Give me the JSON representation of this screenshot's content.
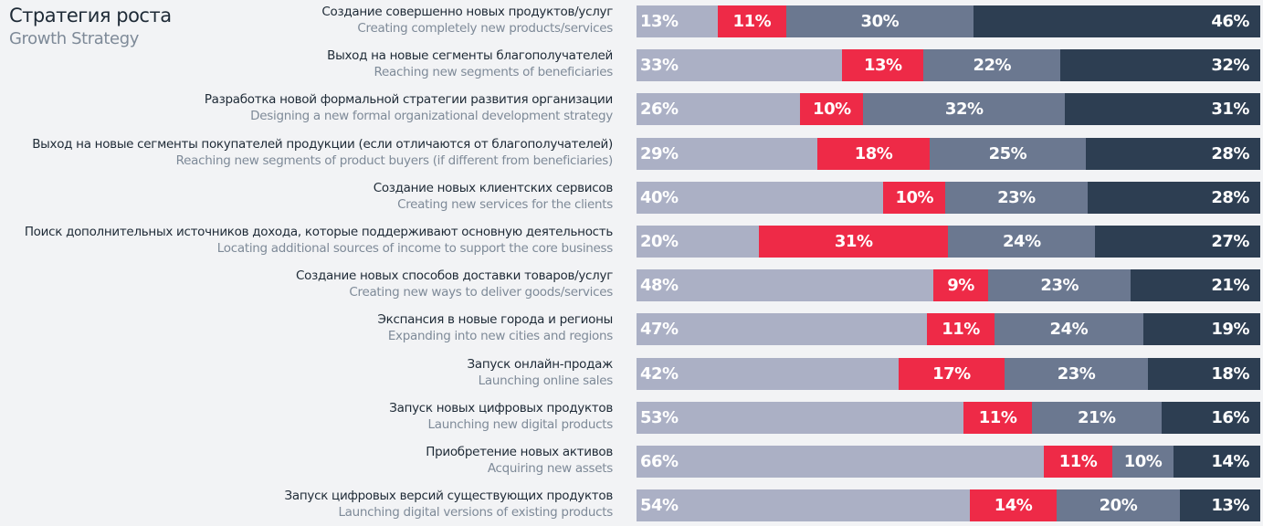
{
  "title": "Стратегия роста",
  "subtitle": "Growth Strategy",
  "chart_data": {
    "type": "bar",
    "orientation": "horizontal",
    "stacked": true,
    "colors": [
      "#abb0c5",
      "#ee2a47",
      "#6b7890",
      "#2d3e52"
    ],
    "categories": [
      {
        "ru": "Создание совершенно новых продуктов/услуг",
        "en": "Creating completely new products/services"
      },
      {
        "ru": "Выход на новые сегменты благополучателей",
        "en": "Reaching new segments of beneficiaries"
      },
      {
        "ru": "Разработка новой формальной стратегии развития организации",
        "en": "Designing a new formal organizational development strategy"
      },
      {
        "ru": "Выход на новые сегменты покупателей продукции (если отличаются от благополучателей)",
        "en": "Reaching new segments of product buyers (if different from beneficiaries)"
      },
      {
        "ru": "Создание новых клиентских сервисов",
        "en": "Creating new services for the clients"
      },
      {
        "ru": "Поиск дополнительных источников дохода, которые поддерживают основную деятельность",
        "en": "Locating additional sources of income to support the core business"
      },
      {
        "ru": "Создание новых способов доставки товаров/услуг",
        "en": "Creating new ways to deliver goods/services"
      },
      {
        "ru": "Экспансия в новые города и регионы",
        "en": "Expanding into new cities and regions"
      },
      {
        "ru": "Запуск онлайн-продаж",
        "en": "Launching online sales"
      },
      {
        "ru": "Запуск новых цифровых продуктов",
        "en": "Launching new digital products"
      },
      {
        "ru": "Приобретение новых активов",
        "en": "Acquiring new assets"
      },
      {
        "ru": "Запуск цифровых версий существующих продуктов",
        "en": "Launching digital versions of existing products"
      }
    ],
    "values": [
      [
        13,
        11,
        30,
        46
      ],
      [
        33,
        13,
        22,
        32
      ],
      [
        26,
        10,
        32,
        31
      ],
      [
        29,
        18,
        25,
        28
      ],
      [
        40,
        10,
        23,
        28
      ],
      [
        20,
        31,
        24,
        27
      ],
      [
        48,
        9,
        23,
        21
      ],
      [
        47,
        11,
        24,
        19
      ],
      [
        42,
        17,
        23,
        18
      ],
      [
        53,
        11,
        21,
        16
      ],
      [
        66,
        11,
        10,
        14
      ],
      [
        54,
        14,
        20,
        13
      ]
    ],
    "unit": "%"
  }
}
